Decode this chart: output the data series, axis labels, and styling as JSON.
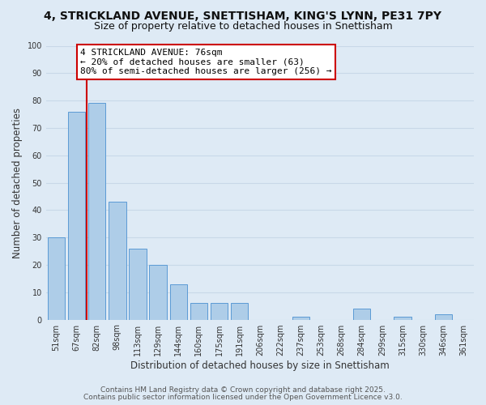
{
  "title_line1": "4, STRICKLAND AVENUE, SNETTISHAM, KING'S LYNN, PE31 7PY",
  "title_line2": "Size of property relative to detached houses in Snettisham",
  "xlabel": "Distribution of detached houses by size in Snettisham",
  "ylabel": "Number of detached properties",
  "bar_labels": [
    "51sqm",
    "67sqm",
    "82sqm",
    "98sqm",
    "113sqm",
    "129sqm",
    "144sqm",
    "160sqm",
    "175sqm",
    "191sqm",
    "206sqm",
    "222sqm",
    "237sqm",
    "253sqm",
    "268sqm",
    "284sqm",
    "299sqm",
    "315sqm",
    "330sqm",
    "346sqm",
    "361sqm"
  ],
  "bar_values": [
    30,
    76,
    79,
    43,
    26,
    20,
    13,
    6,
    6,
    6,
    0,
    0,
    1,
    0,
    0,
    4,
    0,
    1,
    0,
    2,
    0
  ],
  "bar_color": "#aecde8",
  "bar_edge_color": "#5b9bd5",
  "grid_color": "#c8d8e8",
  "background_color": "#deeaf5",
  "vline_color": "#cc0000",
  "annotation_line1": "4 STRICKLAND AVENUE: 76sqm",
  "annotation_line2": "← 20% of detached houses are smaller (63)",
  "annotation_line3": "80% of semi-detached houses are larger (256) →",
  "annotation_box_color": "#ffffff",
  "annotation_box_edge": "#cc0000",
  "ylim": [
    0,
    100
  ],
  "yticks": [
    0,
    10,
    20,
    30,
    40,
    50,
    60,
    70,
    80,
    90,
    100
  ],
  "footer_line1": "Contains HM Land Registry data © Crown copyright and database right 2025.",
  "footer_line2": "Contains public sector information licensed under the Open Government Licence v3.0.",
  "title_fontsize": 10,
  "subtitle_fontsize": 9,
  "axis_label_fontsize": 8.5,
  "tick_fontsize": 7,
  "annotation_fontsize": 8,
  "footer_fontsize": 6.5
}
